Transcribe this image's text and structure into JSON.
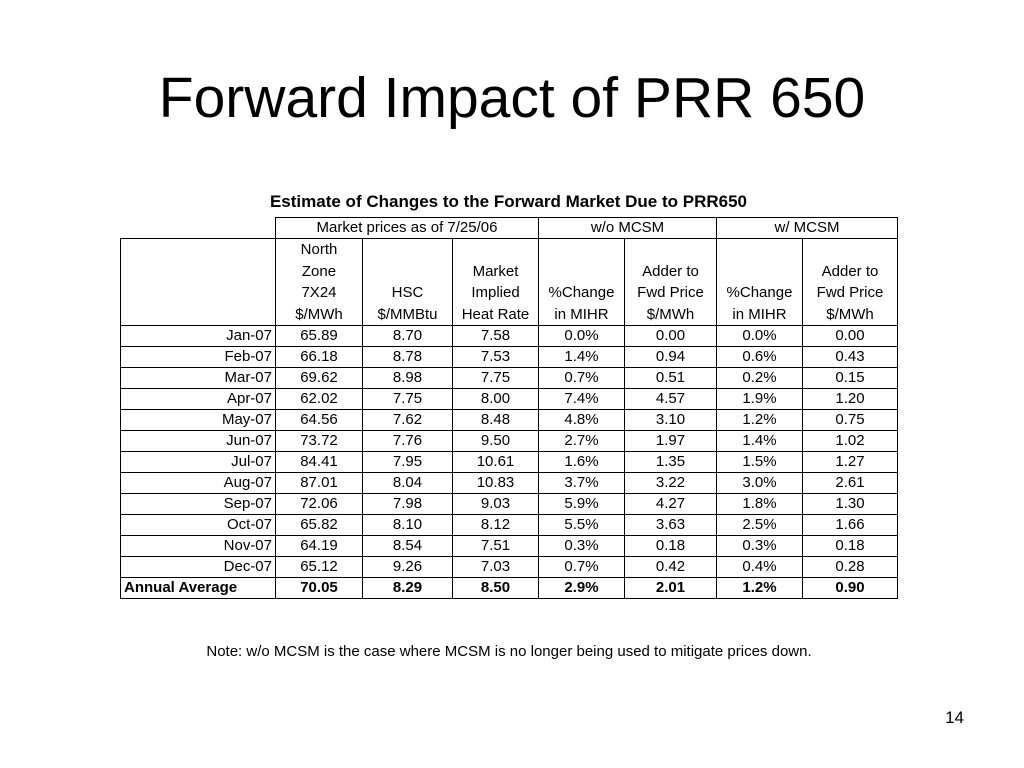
{
  "slide": {
    "title": "Forward Impact of PRR 650",
    "caption": "Estimate of Changes to the Forward Market Due to PRR650",
    "note": "Note: w/o MCSM is the case where MCSM is no longer being used to mitigate prices down.",
    "page_number": "14"
  },
  "table": {
    "group_headers": {
      "market": "Market prices as of 7/25/06",
      "without": "w/o MCSM",
      "with": "w/ MCSM"
    },
    "column_headers": [
      [
        "North",
        "Zone",
        "7X24",
        "$/MWh"
      ],
      [
        "HSC",
        "$/MMBtu"
      ],
      [
        "Market",
        "Implied",
        "Heat Rate"
      ],
      [
        "%Change",
        "in MIHR"
      ],
      [
        "Adder to",
        "Fwd Price",
        "$/MWh"
      ],
      [
        "%Change",
        "in MIHR"
      ],
      [
        "Adder to",
        "Fwd Price",
        "$/MWh"
      ]
    ],
    "rows": [
      [
        "Jan-07",
        "65.89",
        "8.70",
        "7.58",
        "0.0%",
        "0.00",
        "0.0%",
        "0.00"
      ],
      [
        "Feb-07",
        "66.18",
        "8.78",
        "7.53",
        "1.4%",
        "0.94",
        "0.6%",
        "0.43"
      ],
      [
        "Mar-07",
        "69.62",
        "8.98",
        "7.75",
        "0.7%",
        "0.51",
        "0.2%",
        "0.15"
      ],
      [
        "Apr-07",
        "62.02",
        "7.75",
        "8.00",
        "7.4%",
        "4.57",
        "1.9%",
        "1.20"
      ],
      [
        "May-07",
        "64.56",
        "7.62",
        "8.48",
        "4.8%",
        "3.10",
        "1.2%",
        "0.75"
      ],
      [
        "Jun-07",
        "73.72",
        "7.76",
        "9.50",
        "2.7%",
        "1.97",
        "1.4%",
        "1.02"
      ],
      [
        "Jul-07",
        "84.41",
        "7.95",
        "10.61",
        "1.6%",
        "1.35",
        "1.5%",
        "1.27"
      ],
      [
        "Aug-07",
        "87.01",
        "8.04",
        "10.83",
        "3.7%",
        "3.22",
        "3.0%",
        "2.61"
      ],
      [
        "Sep-07",
        "72.06",
        "7.98",
        "9.03",
        "5.9%",
        "4.27",
        "1.8%",
        "1.30"
      ],
      [
        "Oct-07",
        "65.82",
        "8.10",
        "8.12",
        "5.5%",
        "3.63",
        "2.5%",
        "1.66"
      ],
      [
        "Nov-07",
        "64.19",
        "8.54",
        "7.51",
        "0.3%",
        "0.18",
        "0.3%",
        "0.18"
      ],
      [
        "Dec-07",
        "65.12",
        "9.26",
        "7.03",
        "0.7%",
        "0.42",
        "0.4%",
        "0.28"
      ]
    ],
    "average_row": [
      "Annual Average",
      "70.05",
      "8.29",
      "8.50",
      "2.9%",
      "2.01",
      "1.2%",
      "0.90"
    ]
  }
}
